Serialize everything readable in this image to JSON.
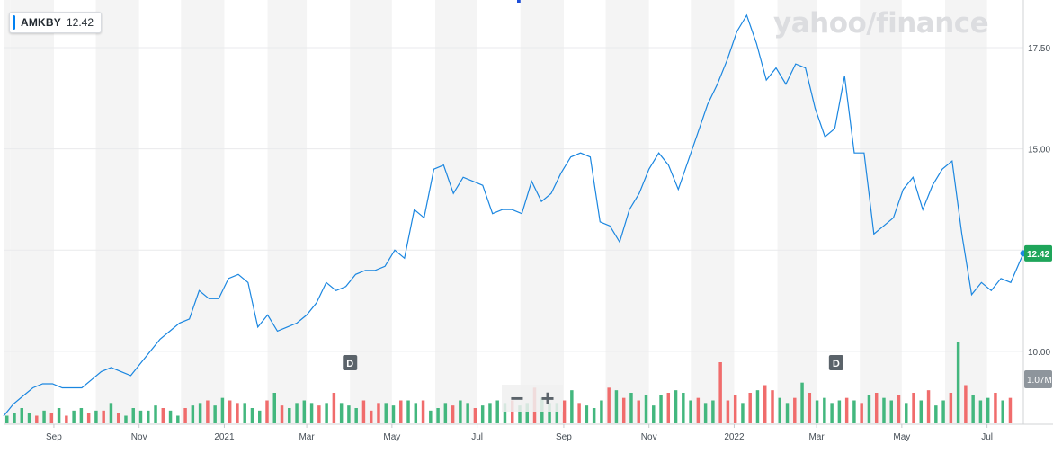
{
  "header": {
    "symbol": "AMKBY",
    "last_price": "12.42",
    "brand": "yahoo/finance"
  },
  "controls": {
    "zoom_out": "−",
    "zoom_in": "+"
  },
  "colors": {
    "line": "#1a86e0",
    "up_volume": "#43b77e",
    "down_volume": "#f06c6c",
    "price_label_bg": "#1ea55a",
    "volume_label_bg": "#8e959c",
    "band_shade": "#f4f4f4"
  },
  "chart_data": {
    "type": "line",
    "price_axis": {
      "ticks": [
        10.0,
        12.5,
        15.0,
        17.5
      ],
      "tick_labels": [
        "10.00",
        "",
        "15.00",
        "17.50"
      ],
      "range": [
        8.2,
        18.5
      ],
      "current_label": "12.42"
    },
    "volume_axis": {
      "label": "1.07M",
      "range": [
        0,
        4.2
      ]
    },
    "x_axis": {
      "start": "2020-07-27",
      "end": "2022-07-27",
      "ticks": [
        {
          "date": "2020-09-01",
          "label": "Sep"
        },
        {
          "date": "2020-11-01",
          "label": "Nov"
        },
        {
          "date": "2021-01-01",
          "label": "2021"
        },
        {
          "date": "2021-03-01",
          "label": "Mar"
        },
        {
          "date": "2021-05-01",
          "label": "May"
        },
        {
          "date": "2021-07-01",
          "label": "Jul"
        },
        {
          "date": "2021-09-01",
          "label": "Sep"
        },
        {
          "date": "2021-11-01",
          "label": "Nov"
        },
        {
          "date": "2022-01-01",
          "label": "2022"
        },
        {
          "date": "2022-03-01",
          "label": "Mar"
        },
        {
          "date": "2022-05-01",
          "label": "May"
        },
        {
          "date": "2022-07-01",
          "label": "Jul"
        }
      ]
    },
    "dividend_markers": [
      {
        "date": "2021-04-01",
        "label": "D"
      },
      {
        "date": "2022-03-15",
        "label": "D"
      }
    ],
    "series": [
      {
        "points": [
          [
            "2020-07-27",
            8.4
          ],
          [
            "2020-08-03",
            8.7
          ],
          [
            "2020-08-10",
            8.9
          ],
          [
            "2020-08-17",
            9.1
          ],
          [
            "2020-08-24",
            9.2
          ],
          [
            "2020-08-31",
            9.2
          ],
          [
            "2020-09-07",
            9.1
          ],
          [
            "2020-09-14",
            9.1
          ],
          [
            "2020-09-21",
            9.1
          ],
          [
            "2020-09-28",
            9.3
          ],
          [
            "2020-10-05",
            9.5
          ],
          [
            "2020-10-12",
            9.6
          ],
          [
            "2020-10-19",
            9.5
          ],
          [
            "2020-10-26",
            9.4
          ],
          [
            "2020-11-02",
            9.7
          ],
          [
            "2020-11-09",
            10.0
          ],
          [
            "2020-11-16",
            10.3
          ],
          [
            "2020-11-23",
            10.5
          ],
          [
            "2020-11-30",
            10.7
          ],
          [
            "2020-12-07",
            10.8
          ],
          [
            "2020-12-14",
            11.5
          ],
          [
            "2020-12-21",
            11.3
          ],
          [
            "2020-12-28",
            11.3
          ],
          [
            "2021-01-04",
            11.8
          ],
          [
            "2021-01-11",
            11.9
          ],
          [
            "2021-01-18",
            11.7
          ],
          [
            "2021-01-25",
            10.6
          ],
          [
            "2021-02-01",
            10.9
          ],
          [
            "2021-02-08",
            10.5
          ],
          [
            "2021-02-15",
            10.6
          ],
          [
            "2021-02-22",
            10.7
          ],
          [
            "2021-03-01",
            10.9
          ],
          [
            "2021-03-08",
            11.2
          ],
          [
            "2021-03-15",
            11.7
          ],
          [
            "2021-03-22",
            11.5
          ],
          [
            "2021-03-29",
            11.6
          ],
          [
            "2021-04-05",
            11.9
          ],
          [
            "2021-04-12",
            12.0
          ],
          [
            "2021-04-19",
            12.0
          ],
          [
            "2021-04-26",
            12.1
          ],
          [
            "2021-05-03",
            12.5
          ],
          [
            "2021-05-10",
            12.3
          ],
          [
            "2021-05-17",
            13.5
          ],
          [
            "2021-05-24",
            13.3
          ],
          [
            "2021-05-31",
            14.5
          ],
          [
            "2021-06-07",
            14.6
          ],
          [
            "2021-06-14",
            13.9
          ],
          [
            "2021-06-21",
            14.3
          ],
          [
            "2021-06-28",
            14.2
          ],
          [
            "2021-07-05",
            14.1
          ],
          [
            "2021-07-12",
            13.4
          ],
          [
            "2021-07-19",
            13.5
          ],
          [
            "2021-07-26",
            13.5
          ],
          [
            "2021-08-02",
            13.4
          ],
          [
            "2021-08-09",
            14.2
          ],
          [
            "2021-08-16",
            13.7
          ],
          [
            "2021-08-23",
            13.9
          ],
          [
            "2021-08-30",
            14.4
          ],
          [
            "2021-09-06",
            14.8
          ],
          [
            "2021-09-13",
            14.9
          ],
          [
            "2021-09-20",
            14.8
          ],
          [
            "2021-09-27",
            13.2
          ],
          [
            "2021-10-04",
            13.1
          ],
          [
            "2021-10-11",
            12.7
          ],
          [
            "2021-10-18",
            13.5
          ],
          [
            "2021-10-25",
            13.9
          ],
          [
            "2021-11-01",
            14.5
          ],
          [
            "2021-11-08",
            14.9
          ],
          [
            "2021-11-15",
            14.6
          ],
          [
            "2021-11-22",
            14.0
          ],
          [
            "2021-11-29",
            14.7
          ],
          [
            "2021-12-06",
            15.4
          ],
          [
            "2021-12-13",
            16.1
          ],
          [
            "2021-12-20",
            16.6
          ],
          [
            "2021-12-27",
            17.2
          ],
          [
            "2022-01-03",
            17.9
          ],
          [
            "2022-01-10",
            18.3
          ],
          [
            "2022-01-17",
            17.6
          ],
          [
            "2022-01-24",
            16.7
          ],
          [
            "2022-01-31",
            17.0
          ],
          [
            "2022-02-07",
            16.6
          ],
          [
            "2022-02-14",
            17.1
          ],
          [
            "2022-02-21",
            17.0
          ],
          [
            "2022-02-28",
            16.0
          ],
          [
            "2022-03-07",
            15.3
          ],
          [
            "2022-03-14",
            15.5
          ],
          [
            "2022-03-21",
            16.8
          ],
          [
            "2022-03-28",
            14.9
          ],
          [
            "2022-04-04",
            14.9
          ],
          [
            "2022-04-11",
            12.9
          ],
          [
            "2022-04-18",
            13.1
          ],
          [
            "2022-04-25",
            13.3
          ],
          [
            "2022-05-02",
            14.0
          ],
          [
            "2022-05-09",
            14.3
          ],
          [
            "2022-05-16",
            13.5
          ],
          [
            "2022-05-23",
            14.1
          ],
          [
            "2022-05-30",
            14.5
          ],
          [
            "2022-06-06",
            14.7
          ],
          [
            "2022-06-13",
            12.9
          ],
          [
            "2022-06-20",
            11.4
          ],
          [
            "2022-06-27",
            11.7
          ],
          [
            "2022-07-04",
            11.5
          ],
          [
            "2022-07-11",
            11.8
          ],
          [
            "2022-07-18",
            11.7
          ],
          [
            "2022-07-27",
            12.42
          ]
        ]
      }
    ],
    "volume": [
      0.3,
      0.4,
      0.6,
      0.4,
      0.3,
      0.5,
      0.4,
      0.6,
      0.3,
      0.5,
      0.6,
      0.4,
      0.5,
      0.5,
      0.8,
      0.4,
      0.3,
      0.6,
      0.5,
      0.5,
      0.7,
      0.6,
      0.5,
      0.3,
      0.6,
      0.7,
      0.8,
      0.9,
      0.7,
      1.0,
      0.9,
      0.8,
      0.8,
      0.6,
      0.5,
      0.9,
      1.2,
      0.7,
      0.6,
      0.8,
      0.9,
      0.8,
      0.7,
      0.8,
      1.2,
      0.8,
      0.7,
      0.6,
      0.9,
      0.5,
      0.8,
      0.8,
      0.7,
      0.9,
      0.9,
      0.8,
      0.9,
      0.5,
      0.6,
      0.8,
      0.7,
      0.9,
      0.8,
      0.6,
      0.7,
      0.8,
      0.9,
      0.8,
      0.9,
      0.7,
      0.8,
      1.4,
      1.0,
      0.8,
      0.8,
      0.9,
      1.3,
      0.8,
      0.7,
      0.6,
      0.9,
      1.4,
      1.3,
      1.0,
      1.2,
      0.9,
      1.1,
      0.7,
      1.1,
      1.2,
      1.3,
      1.2,
      0.9,
      1.0,
      0.8,
      0.9,
      2.4,
      0.9,
      1.1,
      0.8,
      1.2,
      1.3,
      1.5,
      1.3,
      1.0,
      0.8,
      1.0,
      1.6,
      1.2,
      0.9,
      1.0,
      0.8,
      0.9,
      1.0,
      0.9,
      0.8,
      1.1,
      1.2,
      1.0,
      0.9,
      1.1,
      0.8,
      1.2,
      0.9,
      1.3,
      0.7,
      0.9,
      1.2,
      3.2,
      1.5,
      1.1,
      0.9,
      1.0,
      1.2,
      0.9,
      1.0
    ],
    "volume_direction": [
      "up",
      "up",
      "up",
      "up",
      "down",
      "up",
      "down",
      "up",
      "down",
      "up",
      "up",
      "down",
      "up",
      "down",
      "up",
      "down",
      "up",
      "up",
      "up",
      "up",
      "up",
      "down",
      "up",
      "up",
      "down",
      "up",
      "up",
      "down",
      "up",
      "up",
      "down",
      "down",
      "up",
      "up",
      "up",
      "down",
      "up",
      "down",
      "up",
      "up",
      "up",
      "up",
      "down",
      "up",
      "down",
      "up",
      "up",
      "up",
      "down",
      "down",
      "down",
      "up",
      "up",
      "down",
      "up",
      "up",
      "down",
      "up",
      "up",
      "up",
      "down",
      "up",
      "up",
      "down",
      "up",
      "up",
      "up",
      "up",
      "down",
      "up",
      "up",
      "down",
      "up",
      "up",
      "up",
      "down",
      "up",
      "down",
      "up",
      "up",
      "up",
      "down",
      "up",
      "down",
      "up",
      "down",
      "up",
      "up",
      "up",
      "down",
      "up",
      "up",
      "up",
      "down",
      "up",
      "up",
      "down",
      "down",
      "down",
      "up",
      "down",
      "up",
      "down",
      "down",
      "up",
      "up",
      "down",
      "up",
      "down",
      "up",
      "up",
      "up",
      "up",
      "down",
      "up",
      "down",
      "up",
      "down",
      "up",
      "up",
      "down",
      "up",
      "down",
      "up",
      "down",
      "up",
      "up",
      "down",
      "up",
      "down",
      "up",
      "up",
      "up",
      "down",
      "up",
      "down"
    ]
  }
}
